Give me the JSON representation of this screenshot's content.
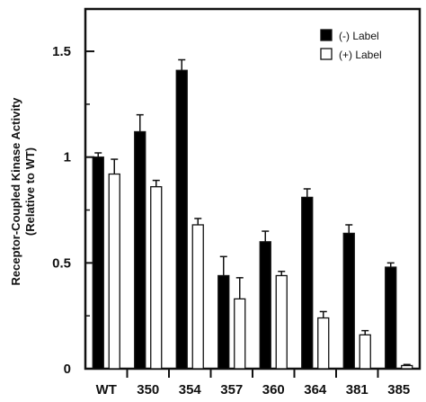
{
  "chart_data": {
    "type": "bar",
    "categories": [
      "WT",
      "350",
      "354",
      "357",
      "360",
      "364",
      "381",
      "385"
    ],
    "series": [
      {
        "name": "(-) Label",
        "values": [
          1.0,
          1.12,
          1.41,
          0.44,
          0.6,
          0.81,
          0.64,
          0.48
        ],
        "errors": [
          0.02,
          0.08,
          0.05,
          0.09,
          0.05,
          0.04,
          0.04,
          0.02
        ],
        "fill": "#000000"
      },
      {
        "name": "(+) Label",
        "values": [
          0.92,
          0.86,
          0.68,
          0.33,
          0.44,
          0.24,
          0.16,
          0.015
        ],
        "errors": [
          0.07,
          0.03,
          0.03,
          0.1,
          0.02,
          0.03,
          0.02,
          0.005
        ],
        "fill": "#ffffff"
      }
    ],
    "y_ticks": [
      "0",
      "0.5",
      "1",
      "1.5"
    ],
    "y_tick_values": [
      0,
      0.5,
      1,
      1.5
    ],
    "ylabel_line1": "Receptor-Coupled Kinase Activity",
    "ylabel_line2": "(Relative to WT)",
    "ylim": [
      0,
      1.7
    ],
    "legend_position": "top-right",
    "grid": false
  }
}
